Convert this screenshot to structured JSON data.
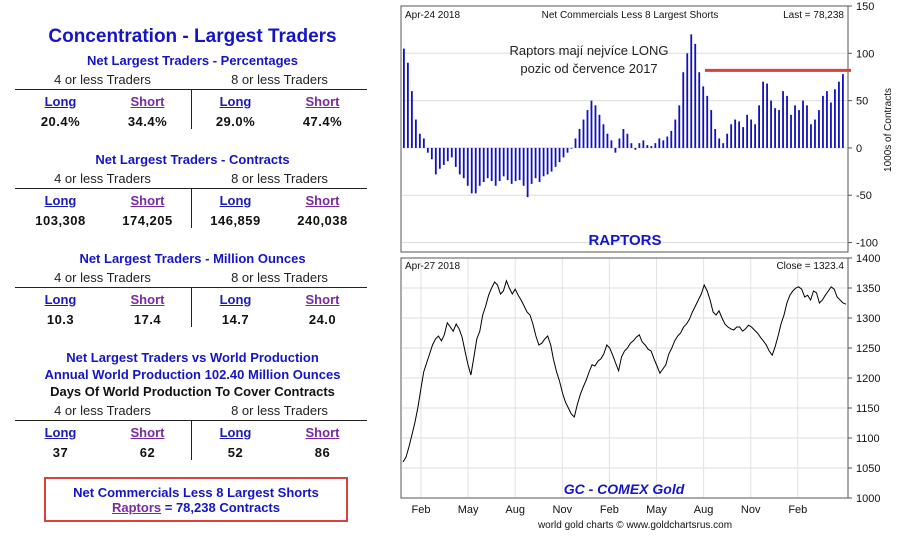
{
  "left": {
    "title": "Concentration - Largest Traders",
    "sections": [
      {
        "title": "Net Largest Traders - Percentages",
        "group1": "4 or less Traders",
        "group2": "8 or less Traders",
        "headers": [
          "Long",
          "Short",
          "Long",
          "Short"
        ],
        "values": [
          "20.4%",
          "34.4%",
          "29.0%",
          "47.4%"
        ]
      },
      {
        "title": "Net Largest Traders - Contracts",
        "group1": "4 or less Traders",
        "group2": "8 or less Traders",
        "headers": [
          "Long",
          "Short",
          "Long",
          "Short"
        ],
        "values": [
          "103,308",
          "174,205",
          "146,859",
          "240,038"
        ]
      },
      {
        "title": "Net Largest Traders - Million Ounces",
        "group1": "4 or less Traders",
        "group2": "8 or less Traders",
        "headers": [
          "Long",
          "Short",
          "Long",
          "Short"
        ],
        "values": [
          "10.3",
          "17.4",
          "14.7",
          "24.0"
        ]
      },
      {
        "title_lines": [
          "Net Largest Traders vs World Production",
          "Annual World Production 102.40 Million Ounces",
          "Days Of World Production To Cover Contracts"
        ],
        "group1": "4 or less Traders",
        "group2": "8 or less Traders",
        "headers": [
          "Long",
          "Short",
          "Long",
          "Short"
        ],
        "values": [
          "37",
          "62",
          "52",
          "86"
        ]
      }
    ],
    "callout": {
      "line1": "Net Commercials Less 8 Largest Shorts",
      "raptors": "Raptors",
      "line2_rest": " = 78,238 Contracts"
    }
  },
  "chart_data": [
    {
      "type": "bar",
      "date_label": "Apr-24 2018",
      "title": "Net Commercials Less 8 Largest Shorts",
      "last_label": "Last = 78,238",
      "name_label": "RAPTORS",
      "annotation": [
        "Raptors mají nejvíce LONG",
        "pozic od července 2017"
      ],
      "ylabel": "1000s of Contracts",
      "ylim": [
        -110,
        150
      ],
      "yticks": [
        150,
        100,
        50,
        0,
        -50,
        -100
      ],
      "reference_line": 82,
      "bar_color": "#1010c0",
      "line_color": "#d9413a",
      "values": [
        105,
        90,
        60,
        30,
        15,
        10,
        -5,
        -12,
        -28,
        -22,
        -18,
        -14,
        -10,
        -20,
        -28,
        -32,
        -40,
        -48,
        -48,
        -40,
        -36,
        -32,
        -35,
        -40,
        -35,
        -30,
        -34,
        -38,
        -35,
        -34,
        -40,
        -52,
        -38,
        -32,
        -36,
        -30,
        -28,
        -25,
        -20,
        -15,
        -10,
        -5,
        0,
        10,
        20,
        30,
        40,
        50,
        45,
        35,
        25,
        15,
        8,
        -5,
        10,
        20,
        15,
        5,
        -2,
        5,
        8,
        3,
        2,
        5,
        10,
        8,
        12,
        18,
        30,
        45,
        80,
        100,
        120,
        110,
        80,
        65,
        55,
        40,
        20,
        10,
        5,
        15,
        25,
        30,
        28,
        22,
        35,
        30,
        25,
        45,
        70,
        68,
        50,
        42,
        40,
        60,
        55,
        35,
        45,
        40,
        50,
        45,
        25,
        30,
        40,
        55,
        60,
        48,
        62,
        70,
        78
      ]
    },
    {
      "type": "line",
      "date_label": "Apr-27 2018",
      "close_label": "Close = 1323.4",
      "name_label": "GC - COMEX Gold",
      "source": "world gold charts © www.goldchartsrus.com",
      "ylim": [
        1000,
        1400
      ],
      "yticks": [
        1400,
        1350,
        1300,
        1250,
        1200,
        1150,
        1100,
        1050,
        1000
      ],
      "x_ticks": [
        "Feb",
        "May",
        "Aug",
        "Nov",
        "Feb",
        "May",
        "Aug",
        "Nov",
        "Feb"
      ],
      "line_color": "#000000",
      "values": [
        1060,
        1068,
        1085,
        1105,
        1125,
        1150,
        1180,
        1210,
        1225,
        1240,
        1255,
        1265,
        1270,
        1262,
        1272,
        1292,
        1285,
        1278,
        1290,
        1282,
        1268,
        1245,
        1222,
        1205,
        1235,
        1265,
        1278,
        1305,
        1320,
        1338,
        1350,
        1360,
        1355,
        1340,
        1345,
        1362,
        1350,
        1340,
        1348,
        1338,
        1330,
        1320,
        1310,
        1305,
        1290,
        1270,
        1255,
        1258,
        1265,
        1270,
        1255,
        1230,
        1210,
        1195,
        1175,
        1160,
        1150,
        1140,
        1135,
        1155,
        1172,
        1185,
        1196,
        1210,
        1222,
        1220,
        1228,
        1232,
        1240,
        1255,
        1250,
        1238,
        1225,
        1212,
        1235,
        1245,
        1250,
        1258,
        1262,
        1268,
        1272,
        1260,
        1255,
        1248,
        1245,
        1232,
        1220,
        1208,
        1215,
        1222,
        1240,
        1250,
        1262,
        1270,
        1275,
        1285,
        1290,
        1298,
        1310,
        1320,
        1330,
        1340,
        1355,
        1345,
        1330,
        1310,
        1305,
        1312,
        1300,
        1290,
        1285,
        1282,
        1280,
        1285,
        1285,
        1278,
        1282,
        1288,
        1285,
        1280,
        1275,
        1268,
        1262,
        1255,
        1245,
        1238,
        1252,
        1270,
        1290,
        1305,
        1325,
        1338,
        1345,
        1350,
        1352,
        1348,
        1335,
        1338,
        1330,
        1345,
        1342,
        1325,
        1330,
        1338,
        1345,
        1352,
        1348,
        1335,
        1330,
        1325,
        1323
      ]
    }
  ]
}
